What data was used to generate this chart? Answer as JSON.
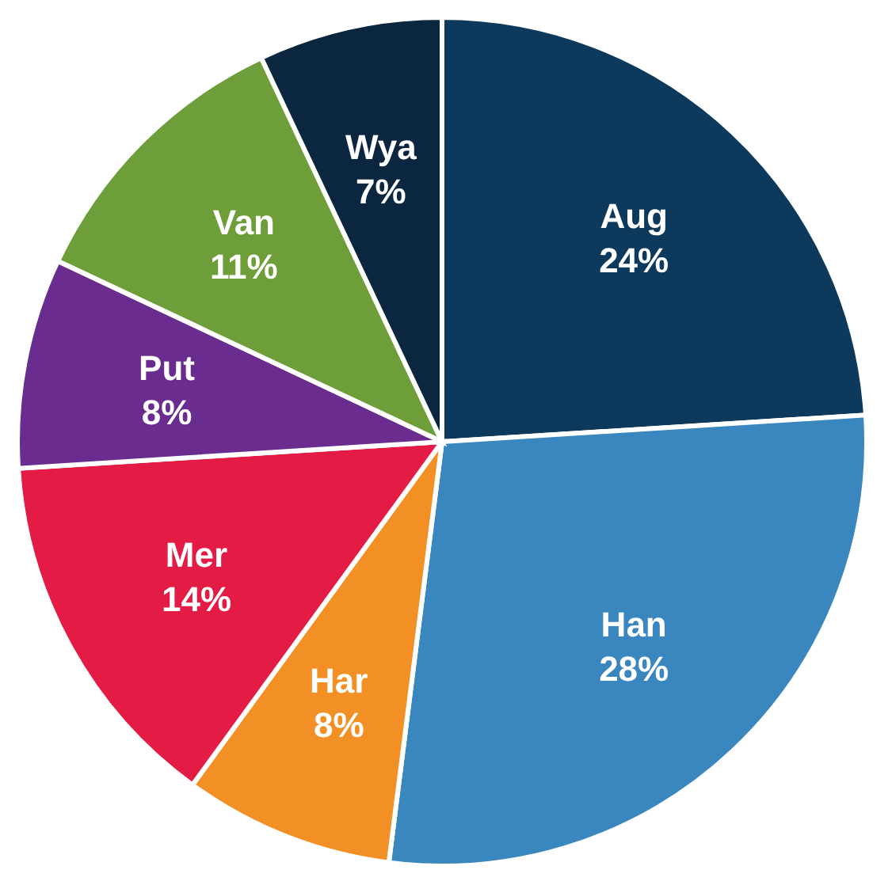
{
  "chart_data": {
    "type": "pie",
    "categories": [
      "Aug",
      "Han",
      "Har",
      "Mer",
      "Put",
      "Van",
      "Wya"
    ],
    "values": [
      24,
      28,
      8,
      14,
      8,
      11,
      7
    ],
    "value_labels": [
      "24%",
      "28%",
      "8%",
      "14%",
      "8%",
      "11%",
      "7%"
    ],
    "colors": [
      "#0d3a5c",
      "#3a87bf",
      "#f29026",
      "#e31b45",
      "#6a2d8f",
      "#6e9e3a",
      "#0b2740"
    ],
    "legend": false
  }
}
